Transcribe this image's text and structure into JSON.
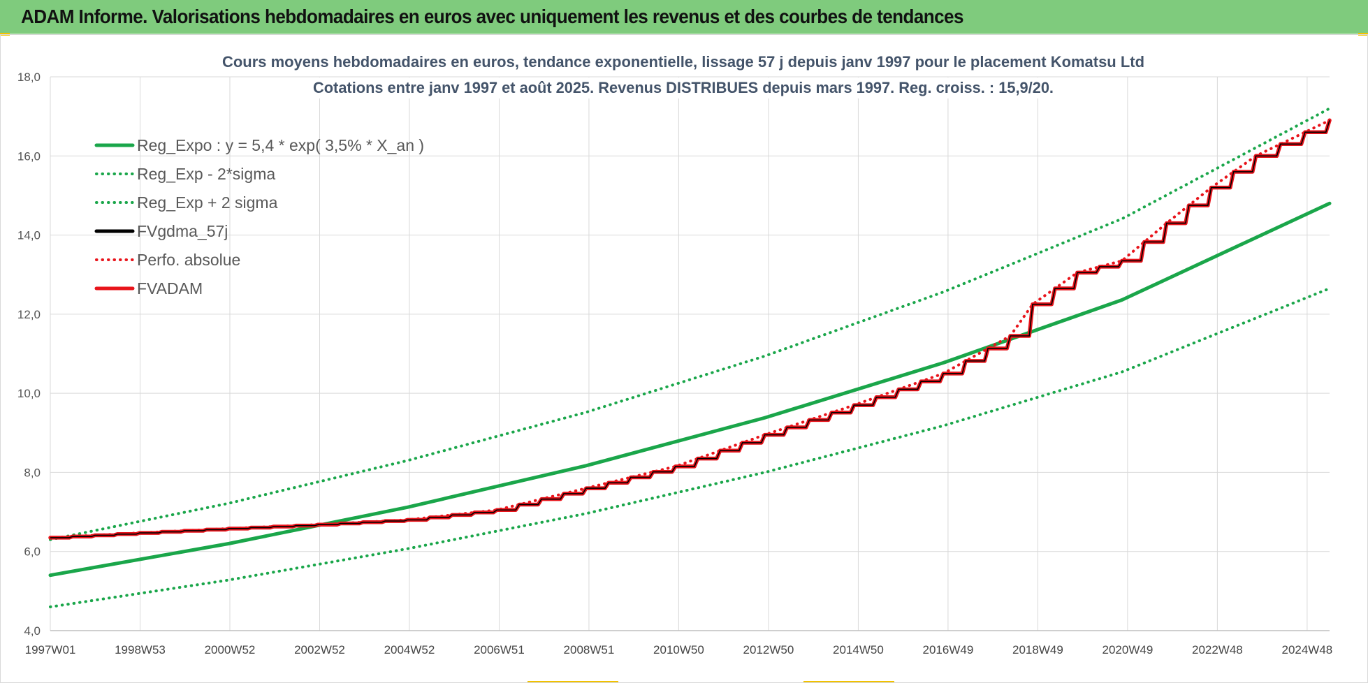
{
  "banner": {
    "title": "ADAM Informe. Valorisations hebdomadaires en euros avec uniquement les revenus et des courbes de tendances"
  },
  "chart_data": {
    "type": "line",
    "title_lines": [
      "Cours moyens hebdomadaires en euros, tendance exponentielle, lissage 57 j depuis janv 1997  pour le placement Komatsu Ltd",
      "Cotations entre janv 1997 et août 2025.  Revenus DISTRIBUES depuis mars 1997. Reg. croiss. : 15,9/20."
    ],
    "x_ticks": [
      "1997W01",
      "1998W53",
      "2000W52",
      "2002W52",
      "2004W52",
      "2006W51",
      "2008W51",
      "2010W50",
      "2012W50",
      "2014W50",
      "2016W49",
      "2018W49",
      "2020W49",
      "2022W48",
      "2024W48"
    ],
    "xlim": [
      1997.0,
      2025.65
    ],
    "ylim": [
      4.0,
      18.0
    ],
    "y_ticks": [
      "4,0",
      "6,0",
      "8,0",
      "10,0",
      "12,0",
      "14,0",
      "16,0",
      "18,0"
    ],
    "grid": true,
    "legend_position": "top-left",
    "colors": {
      "reg": "#1aa64a",
      "fv": "#e8141b",
      "gdma": "#000000"
    },
    "series": [
      {
        "name": "Reg_Expo : y = 5,4 * exp( 3,5% *  X_an )",
        "style": "solid",
        "color": "#1aa64a",
        "x": [
          1997.0,
          2001.0,
          2005.0,
          2009.0,
          2013.0,
          2017.0,
          2021.0,
          2025.65
        ],
        "y": [
          5.4,
          6.2,
          7.12,
          8.17,
          9.38,
          10.77,
          12.36,
          14.8
        ]
      },
      {
        "name": "Reg_Exp - 2*sigma",
        "style": "dotted",
        "color": "#1aa64a",
        "x": [
          1997.0,
          2001.0,
          2005.0,
          2009.0,
          2013.0,
          2017.0,
          2021.0,
          2025.65
        ],
        "y": [
          4.6,
          5.28,
          6.07,
          6.96,
          8.0,
          9.18,
          10.54,
          12.65
        ]
      },
      {
        "name": "Reg_Exp + 2 sigma",
        "style": "dotted",
        "color": "#1aa64a",
        "x": [
          1997.0,
          2001.0,
          2005.0,
          2009.0,
          2013.0,
          2017.0,
          2021.0,
          2025.65
        ],
        "y": [
          6.3,
          7.22,
          8.3,
          9.52,
          10.94,
          12.56,
          14.41,
          17.2
        ]
      },
      {
        "name": "FVgdma_57j",
        "style": "solid-thin",
        "color": "#000000",
        "x": [
          1997.0,
          1999.0,
          2001.0,
          2003.0,
          2005.0,
          2007.0,
          2009.0,
          2011.0,
          2013.0,
          2015.0,
          2017.0,
          2018.5,
          2019.0,
          2020.0,
          2021.0,
          2022.0,
          2023.0,
          2024.0,
          2025.65
        ],
        "y": [
          6.35,
          6.47,
          6.58,
          6.68,
          6.8,
          7.05,
          7.6,
          8.15,
          8.95,
          9.7,
          10.5,
          11.45,
          12.25,
          13.05,
          13.35,
          14.3,
          15.2,
          16.0,
          16.9
        ]
      },
      {
        "name": "Perfo. absolue",
        "style": "dotted",
        "color": "#e8141b",
        "x": [
          1997.0,
          1999.0,
          2001.0,
          2003.0,
          2005.0,
          2007.0,
          2009.0,
          2011.0,
          2013.0,
          2015.0,
          2017.0,
          2018.5,
          2019.0,
          2020.0,
          2021.0,
          2022.0,
          2023.0,
          2024.0,
          2025.65
        ],
        "y": [
          6.35,
          6.47,
          6.58,
          6.68,
          6.8,
          7.05,
          7.6,
          8.15,
          8.95,
          9.7,
          10.5,
          11.45,
          12.25,
          13.05,
          13.35,
          14.3,
          15.2,
          16.0,
          16.9
        ]
      },
      {
        "name": "FVADAM",
        "style": "solid-step",
        "color": "#e8141b",
        "x": [
          1997.0,
          1999.0,
          2001.0,
          2003.0,
          2005.0,
          2007.0,
          2009.0,
          2011.0,
          2013.0,
          2015.0,
          2017.0,
          2018.5,
          2019.0,
          2020.0,
          2021.0,
          2022.0,
          2023.0,
          2024.0,
          2025.65
        ],
        "y": [
          6.35,
          6.47,
          6.58,
          6.68,
          6.8,
          7.05,
          7.6,
          8.15,
          8.95,
          9.7,
          10.5,
          11.45,
          12.25,
          13.05,
          13.35,
          14.3,
          15.2,
          16.0,
          16.9
        ]
      }
    ]
  }
}
